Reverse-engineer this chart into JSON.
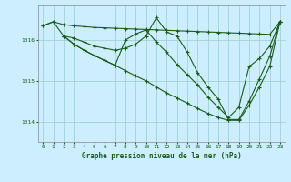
{
  "title": "Graphe pression niveau de la mer (hPa)",
  "background_color": "#cceeff",
  "grid_color": "#99cccc",
  "line_color": "#1a5c1a",
  "xlim": [
    -0.5,
    23.5
  ],
  "ylim": [
    1013.5,
    1016.85
  ],
  "yticks": [
    1014,
    1015,
    1016
  ],
  "xticks": [
    0,
    1,
    2,
    3,
    4,
    5,
    6,
    7,
    8,
    9,
    10,
    11,
    12,
    13,
    14,
    15,
    16,
    17,
    18,
    19,
    20,
    21,
    22,
    23
  ],
  "series": [
    {
      "x": [
        0,
        1,
        2,
        3,
        4,
        5,
        6,
        7,
        8,
        9,
        10,
        11,
        12,
        13,
        14,
        15,
        16,
        17,
        18,
        19,
        20,
        21,
        22,
        23
      ],
      "y": [
        1016.35,
        1016.45,
        1016.38,
        1016.35,
        1016.33,
        1016.31,
        1016.3,
        1016.29,
        1016.28,
        1016.27,
        1016.26,
        1016.25,
        1016.24,
        1016.23,
        1016.22,
        1016.21,
        1016.2,
        1016.19,
        1016.18,
        1016.17,
        1016.16,
        1016.15,
        1016.14,
        1016.45
      ]
    },
    {
      "x": [
        0,
        1,
        2,
        3,
        4,
        5,
        6,
        7,
        8,
        9,
        10,
        11,
        12,
        13,
        14,
        15,
        16,
        17,
        18,
        19,
        20,
        21,
        22,
        23
      ],
      "y": [
        1016.35,
        1016.45,
        1016.1,
        1016.05,
        1015.95,
        1015.85,
        1015.8,
        1015.75,
        1015.8,
        1015.9,
        1016.1,
        1016.55,
        1016.2,
        1016.1,
        1015.7,
        1015.2,
        1014.85,
        1014.55,
        1014.05,
        1014.05,
        1014.5,
        1015.05,
        1015.6,
        1016.45
      ]
    },
    {
      "x": [
        2,
        3,
        4,
        5,
        6,
        7,
        8,
        9,
        10,
        11,
        12,
        13,
        14,
        15,
        16,
        17,
        18,
        19,
        20,
        21,
        22,
        23
      ],
      "y": [
        1016.1,
        1015.9,
        1015.75,
        1015.62,
        1015.5,
        1015.38,
        1015.25,
        1015.12,
        1015.0,
        1014.85,
        1014.7,
        1014.58,
        1014.45,
        1014.32,
        1014.2,
        1014.1,
        1014.03,
        1014.03,
        1014.4,
        1014.85,
        1015.35,
        1016.45
      ]
    },
    {
      "x": [
        2,
        3,
        4,
        5,
        6,
        7,
        8,
        9,
        10,
        11,
        12,
        13,
        14,
        15,
        16,
        17,
        18,
        19,
        20,
        21,
        22,
        23
      ],
      "y": [
        1016.1,
        1015.9,
        1015.75,
        1015.62,
        1015.5,
        1015.38,
        1016.0,
        1016.15,
        1016.25,
        1015.95,
        1015.7,
        1015.4,
        1015.15,
        1014.9,
        1014.6,
        1014.35,
        1014.1,
        1014.35,
        1015.35,
        1015.55,
        1015.85,
        1016.45
      ]
    }
  ]
}
